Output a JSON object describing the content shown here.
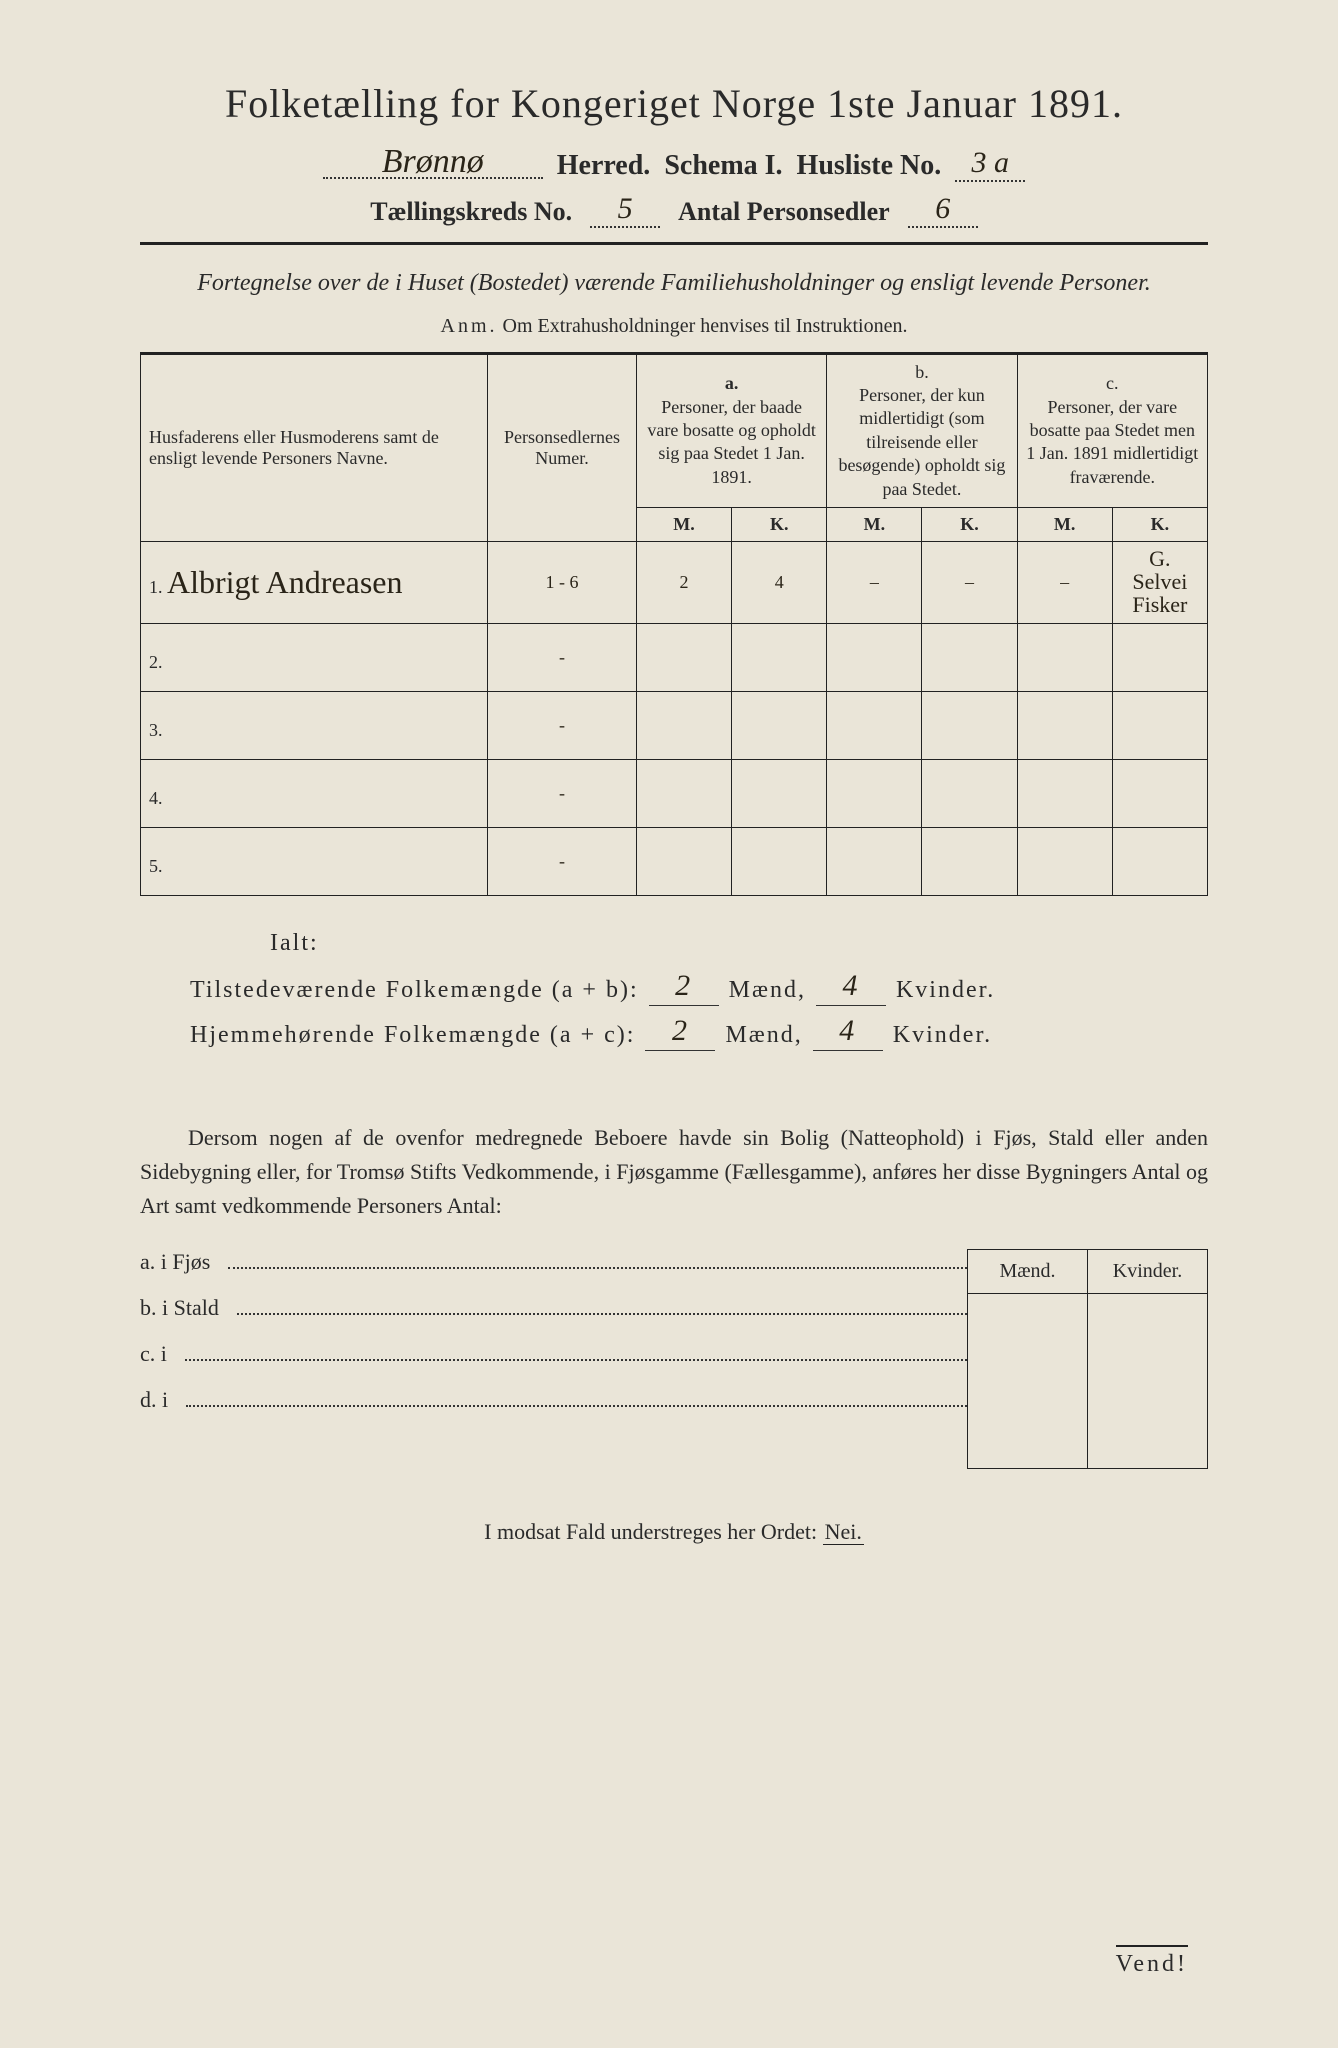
{
  "title": "Folketælling for Kongeriget Norge 1ste Januar 1891.",
  "header": {
    "herred_value": "Brønnø",
    "herred_label": "Herred.",
    "schema_label": "Schema I.",
    "husliste_label": "Husliste No.",
    "husliste_value": "3 a",
    "kreds_label": "Tællingskreds No.",
    "kreds_value": "5",
    "personsedler_label": "Antal Personsedler",
    "personsedler_value": "6"
  },
  "subtitle": "Fortegnelse over de i Huset (Bostedet) værende Familiehusholdninger og ensligt levende Personer.",
  "anm_label": "Anm.",
  "anm_text": "Om Extrahusholdninger henvises til Instruktionen.",
  "columns": {
    "name": "Husfaderens eller Husmoderens samt de ensligt levende Personers Navne.",
    "numer": "Personsedlernes Numer.",
    "a_label": "a.",
    "a_text": "Personer, der baade vare bosatte og opholdt sig paa Stedet 1 Jan. 1891.",
    "b_label": "b.",
    "b_text": "Personer, der kun midlertidigt (som tilreisende eller besøgende) opholdt sig paa Stedet.",
    "c_label": "c.",
    "c_text": "Personer, der vare bosatte paa Stedet men 1 Jan. 1891 midlertidigt fraværende.",
    "m": "M.",
    "k": "K."
  },
  "rows": [
    {
      "n": "1.",
      "name": "Albrigt Andreasen",
      "numer": "1 - 6",
      "a_m": "2",
      "a_k": "4",
      "b_m": "–",
      "b_k": "–",
      "c_m": "–",
      "c_k": "",
      "margin": "G. Selvei Fisker"
    },
    {
      "n": "2.",
      "name": "",
      "numer": "-",
      "a_m": "",
      "a_k": "",
      "b_m": "",
      "b_k": "",
      "c_m": "",
      "c_k": "",
      "margin": ""
    },
    {
      "n": "3.",
      "name": "",
      "numer": "-",
      "a_m": "",
      "a_k": "",
      "b_m": "",
      "b_k": "",
      "c_m": "",
      "c_k": "",
      "margin": ""
    },
    {
      "n": "4.",
      "name": "",
      "numer": "-",
      "a_m": "",
      "a_k": "",
      "b_m": "",
      "b_k": "",
      "c_m": "",
      "c_k": "",
      "margin": ""
    },
    {
      "n": "5.",
      "name": "",
      "numer": "-",
      "a_m": "",
      "a_k": "",
      "b_m": "",
      "b_k": "",
      "c_m": "",
      "c_k": "",
      "margin": ""
    }
  ],
  "ialt": "Ialt:",
  "summary": {
    "tilstede_label": "Tilstedeværende Folkemængde (a + b):",
    "tilstede_m": "2",
    "tilstede_k": "4",
    "hjemme_label": "Hjemmehørende Folkemængde (a + c):",
    "hjemme_m": "2",
    "hjemme_k": "4",
    "maend": "Mænd,",
    "kvinder": "Kvinder."
  },
  "para": "Dersom nogen af de ovenfor medregnede Beboere havde sin Bolig (Natteophold) i Fjøs, Stald eller anden Sidebygning eller, for Tromsø Stifts Vedkommende, i Fjøsgamme (Fællesgamme), anføres her disse Bygningers Antal og Art samt vedkommende Personers Antal:",
  "buildings": {
    "a": "a.  i       Fjøs",
    "b": "b.  i       Stald",
    "c": "c.  i",
    "d": "d.  i",
    "maend": "Mænd.",
    "kvinder": "Kvinder."
  },
  "nei_line": "I modsat Fald understreges her Ordet:",
  "nei": "Nei.",
  "vend": "Vend!",
  "colors": {
    "paper": "#eae5d8",
    "ink": "#2a2a2a",
    "handwriting": "#2a2418"
  }
}
